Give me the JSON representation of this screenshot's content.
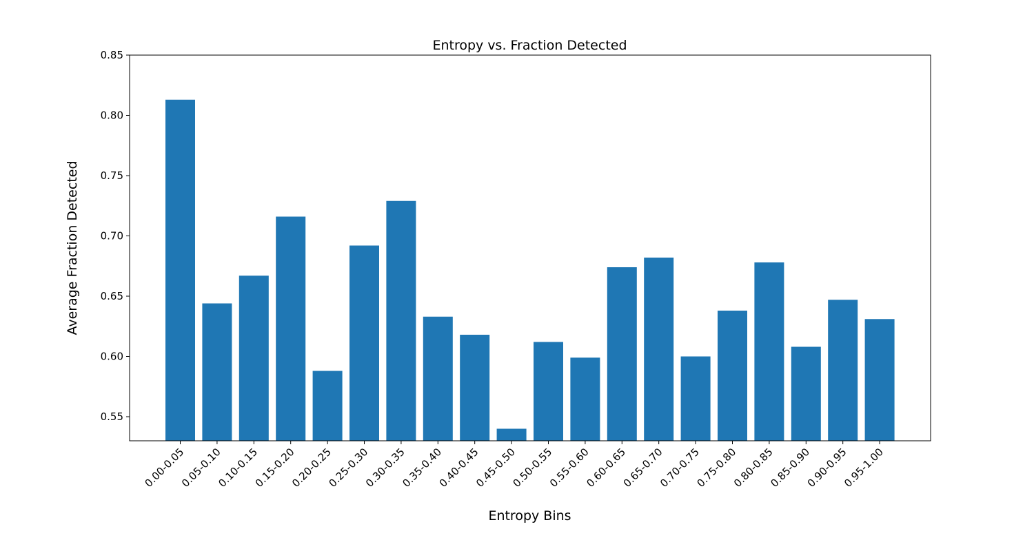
{
  "colors": {
    "bar": "#1f77b4",
    "axis": "#000000",
    "background": "#ffffff"
  },
  "chart_data": {
    "type": "bar",
    "title": "Entropy vs. Fraction Detected",
    "xlabel": "Entropy Bins",
    "ylabel": "Average Fraction Detected",
    "categories": [
      "0.00-0.05",
      "0.05-0.10",
      "0.10-0.15",
      "0.15-0.20",
      "0.20-0.25",
      "0.25-0.30",
      "0.30-0.35",
      "0.35-0.40",
      "0.40-0.45",
      "0.45-0.50",
      "0.50-0.55",
      "0.55-0.60",
      "0.60-0.65",
      "0.65-0.70",
      "0.70-0.75",
      "0.75-0.80",
      "0.80-0.85",
      "0.85-0.90",
      "0.90-0.95",
      "0.95-1.00"
    ],
    "values": [
      0.813,
      0.644,
      0.667,
      0.716,
      0.588,
      0.692,
      0.729,
      0.633,
      0.618,
      0.54,
      0.612,
      0.599,
      0.674,
      0.682,
      0.6,
      0.638,
      0.678,
      0.608,
      0.647,
      0.631
    ],
    "ylim": [
      0.53,
      0.85
    ],
    "yticks": [
      "0.55",
      "0.60",
      "0.65",
      "0.70",
      "0.75",
      "0.80",
      "0.85"
    ],
    "grid": false,
    "legend": "none"
  }
}
